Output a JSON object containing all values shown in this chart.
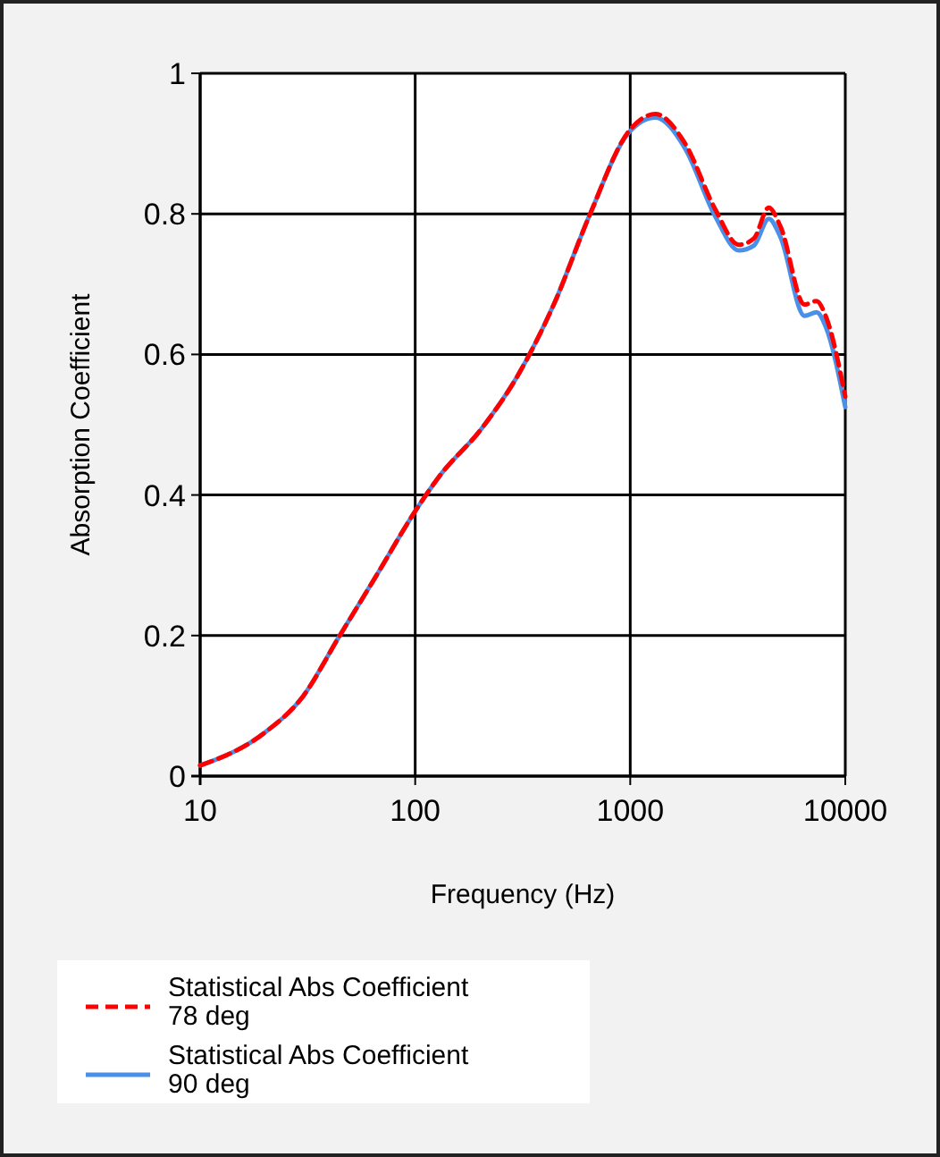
{
  "chart_data": {
    "type": "line",
    "xlabel": "Frequency (Hz)",
    "ylabel": "Absorption Coefficient",
    "log": "x",
    "xlim": [
      10,
      10000
    ],
    "xticks": [
      10,
      100,
      1000,
      10000
    ],
    "ylim": [
      0,
      1
    ],
    "yticks": [
      0,
      0.2,
      0.4,
      0.6,
      0.8,
      1
    ],
    "grid": true,
    "legend": "bottom left",
    "x": [
      10,
      20,
      30,
      44,
      65,
      101,
      129,
      203,
      300,
      441,
      647,
      981,
      1310,
      1800,
      2480,
      3200,
      3760,
      4410,
      5010,
      6460,
      7360,
      8100,
      10000
    ],
    "series": [
      {
        "name": "Statistical Abs Coefficient\n78 deg",
        "color": "#ff0000",
        "line_style": "dashed",
        "values": [
          0.015,
          0.062,
          0.113,
          0.197,
          0.282,
          0.379,
          0.426,
          0.494,
          0.57,
          0.671,
          0.798,
          0.917,
          0.942,
          0.9,
          0.807,
          0.756,
          0.765,
          0.809,
          0.781,
          0.671,
          0.676,
          0.655,
          0.54
        ]
      },
      {
        "name": "Statistical Abs Coefficient\n90 deg",
        "color": "#4a90e8",
        "line_style": "solid",
        "values": [
          0.015,
          0.062,
          0.113,
          0.197,
          0.282,
          0.379,
          0.426,
          0.494,
          0.57,
          0.671,
          0.798,
          0.915,
          0.937,
          0.893,
          0.797,
          0.748,
          0.755,
          0.793,
          0.766,
          0.655,
          0.66,
          0.64,
          0.525
        ]
      }
    ]
  }
}
